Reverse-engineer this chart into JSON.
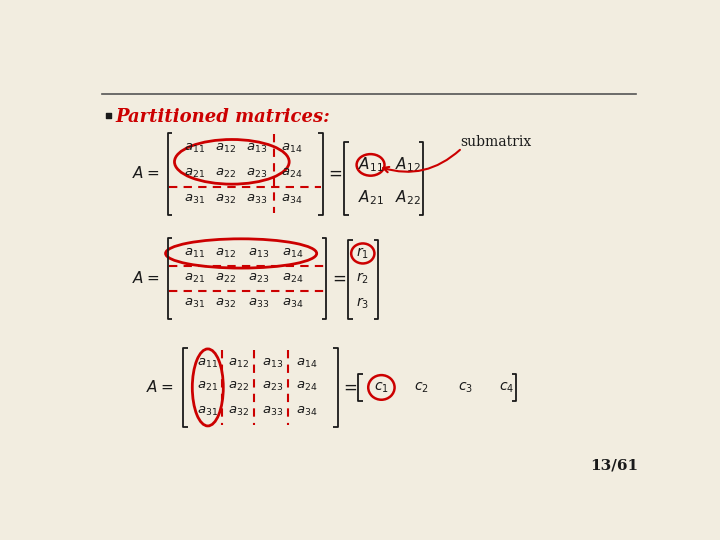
{
  "bg_color": "#f2ede0",
  "title_bullet": "Partitioned matrices:",
  "title_color": "#cc0000",
  "submatrix_label": "submatrix",
  "slide_number": "13/61",
  "red": "#cc0000",
  "black": "#1a1a1a",
  "dark": "#444444"
}
